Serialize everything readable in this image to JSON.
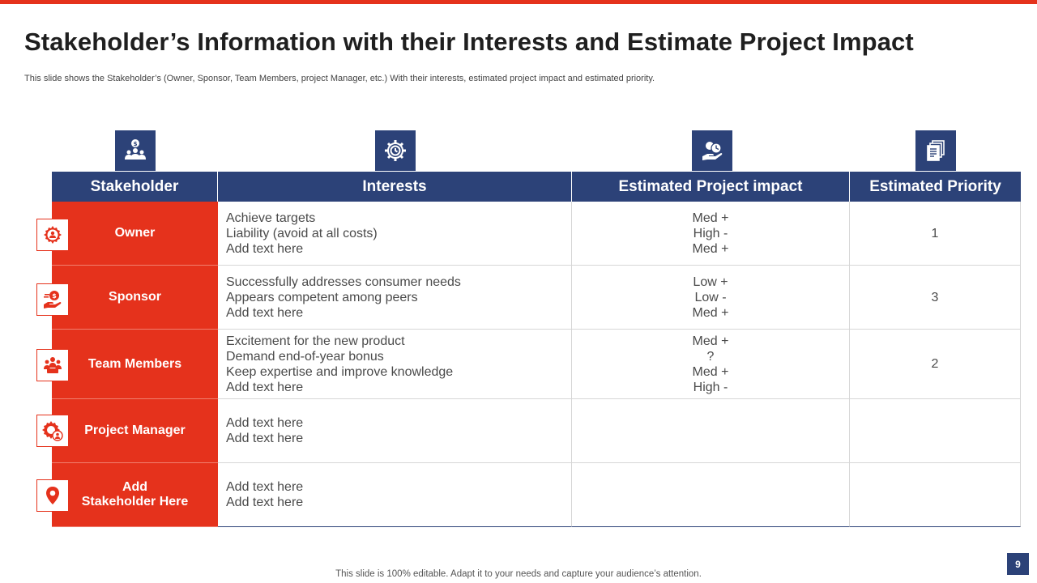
{
  "slide": {
    "title": "Stakeholder’s Information with their Interests and Estimate Project Impact",
    "subtitle": "This slide shows the Stakeholder’s (Owner, Sponsor, Team Members, project Manager, etc.) With their interests, estimated project impact and estimated priority.",
    "footer": "This slide is 100% editable. Adapt it to your needs and capture your audience’s attention.",
    "page_number": "9"
  },
  "colors": {
    "accent_red": "#e5321c",
    "navy": "#2c4278"
  },
  "table": {
    "header_icons": [
      "stakeholder-money-group-icon",
      "gear-clock-icon",
      "hand-coin-clock-icon",
      "documents-icon"
    ],
    "headers": {
      "stakeholder": "Stakeholder",
      "interests": "Interests",
      "impact": "Estimated Project impact",
      "priority": "Estimated Priority"
    },
    "rows": [
      {
        "icon": "gear-person-icon",
        "stakeholder": [
          "Owner"
        ],
        "interests": [
          "Achieve targets",
          "Liability (avoid at all costs)",
          "Add text here"
        ],
        "impact": [
          "Med +",
          "High -",
          "Med +"
        ],
        "priority": "1"
      },
      {
        "icon": "hand-money-icon",
        "stakeholder": [
          "Sponsor"
        ],
        "interests": [
          "Successfully  addresses consumer needs",
          "Appears competent among peers",
          "Add text here"
        ],
        "impact": [
          "Low +",
          "Low -",
          "Med +"
        ],
        "priority": "3"
      },
      {
        "icon": "team-icon",
        "stakeholder": [
          "Team Members"
        ],
        "interests": [
          "Excitement for the new product",
          "Demand end-of-year bonus",
          "Keep expertise and improve knowledge",
          "Add text here"
        ],
        "impact": [
          "Med +",
          "?",
          "Med +",
          "High -"
        ],
        "priority": "2"
      },
      {
        "icon": "gear-manager-icon",
        "stakeholder": [
          "Project Manager"
        ],
        "interests": [
          "Add text here",
          "Add text here"
        ],
        "impact": [],
        "priority": ""
      },
      {
        "icon": "location-pin-icon",
        "stakeholder": [
          "Add",
          "Stakeholder Here"
        ],
        "interests": [
          "Add text here",
          "Add text here"
        ],
        "impact": [],
        "priority": ""
      }
    ]
  }
}
